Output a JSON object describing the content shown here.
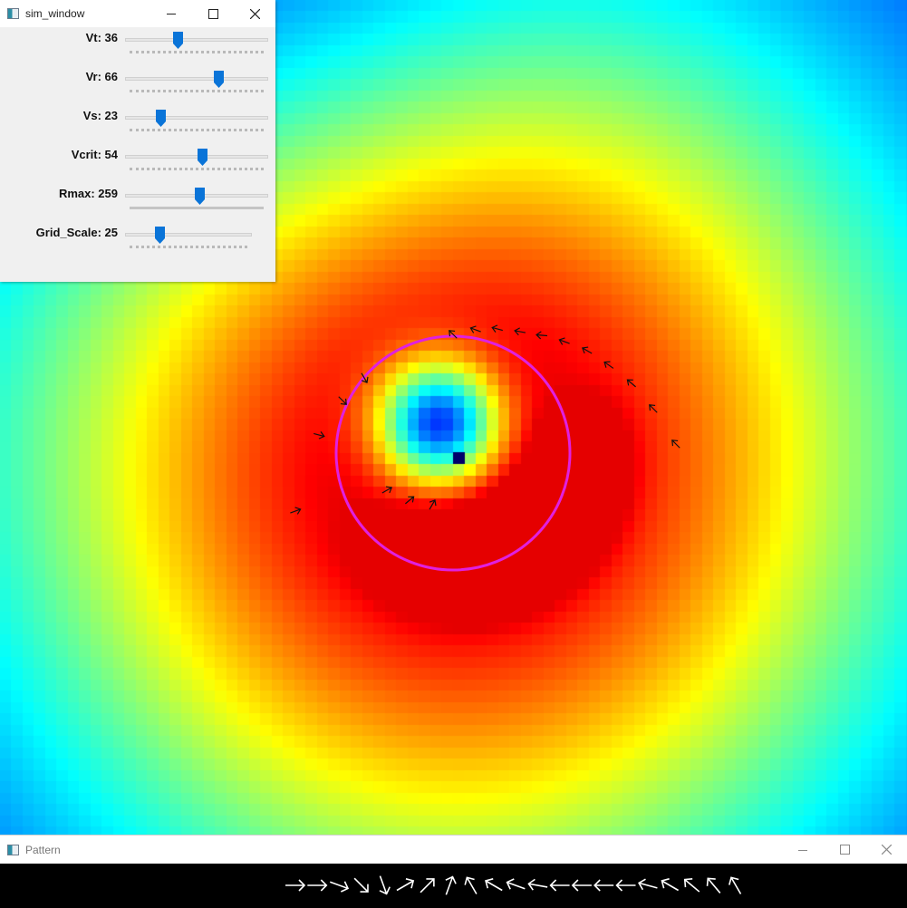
{
  "sim_window": {
    "title": "sim_window",
    "sliders": [
      {
        "label": "Vt: 36",
        "value": 36,
        "max": 100
      },
      {
        "label": "Vr: 66",
        "value": 66,
        "max": 100
      },
      {
        "label": "Vs: 23",
        "value": 23,
        "max": 100
      },
      {
        "label": "Vcrit: 54",
        "value": 54,
        "max": 100
      },
      {
        "label": "Rmax: 259",
        "value": 259,
        "max": 500
      },
      {
        "label": "Grid_Scale: 25",
        "value": 25,
        "max": 100
      }
    ]
  },
  "pattern_window": {
    "title": "Pattern"
  },
  "icons": {
    "app_icon": "window-app-icon",
    "minimize": "minimize-icon",
    "maximize": "maximize-icon",
    "close": "close-icon"
  },
  "colors": {
    "circle": "#e020e0",
    "slider_thumb": "#0a74d8",
    "titlebar": "#ffffff",
    "panel": "#f0f0f0"
  }
}
